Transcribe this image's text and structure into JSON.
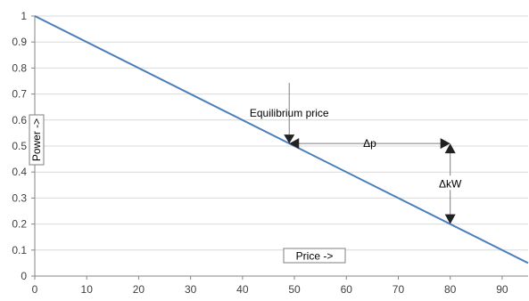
{
  "chart_data": {
    "type": "line",
    "xlabel": "Price ->",
    "ylabel": "Power ->",
    "xlim": [
      0,
      95
    ],
    "ylim": [
      0,
      1
    ],
    "xticks": [
      0,
      10,
      20,
      30,
      40,
      50,
      60,
      70,
      80,
      90
    ],
    "yticks": [
      0,
      0.1,
      0.2,
      0.3,
      0.4,
      0.5,
      0.6,
      0.7,
      0.8,
      0.9,
      1
    ],
    "grid": "horizontal",
    "series": [
      {
        "color": "#4a7ebb",
        "x": [
          0,
          95
        ],
        "y": [
          1,
          0.05
        ]
      }
    ],
    "annotations": {
      "equilibrium": {
        "label": "Equilibrium price",
        "x": 49,
        "y": 0.51
      },
      "delta_p": {
        "label": "Δp",
        "x_from": 49,
        "x_to": 80,
        "y": 0.51
      },
      "delta_kw": {
        "label": "ΔkW",
        "x": 80,
        "y_from": 0.51,
        "y_to": 0.2
      }
    }
  }
}
